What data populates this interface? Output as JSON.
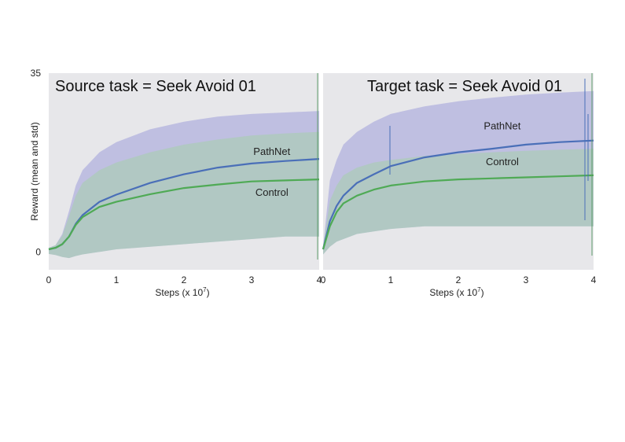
{
  "chart_data": [
    {
      "type": "line",
      "title": "Source task = Seek Avoid 01",
      "xlabel": "Steps (x 10",
      "xlabel_exponent": "7",
      "ylabel": "Reward (mean and std)",
      "xlim": [
        0,
        4
      ],
      "ylim": [
        -3.5,
        35
      ],
      "x_ticks": [
        "0",
        "1",
        "2",
        "3",
        "4"
      ],
      "y_ticks": [
        "35",
        "0"
      ],
      "grid": false,
      "x": [
        0,
        0.1,
        0.2,
        0.3,
        0.4,
        0.5,
        0.75,
        1.0,
        1.5,
        2.0,
        2.5,
        3.0,
        3.5,
        4.0
      ],
      "series": [
        {
          "name": "PathNet",
          "color": "#4a6fb8",
          "mean": [
            0.5,
            0.8,
            1.5,
            3.0,
            5.5,
            7.2,
            9.8,
            11.2,
            13.5,
            15.2,
            16.5,
            17.3,
            17.8,
            18.2
          ],
          "upper": [
            0.8,
            1.3,
            3.5,
            8.0,
            13.0,
            16.0,
            19.5,
            21.5,
            24.0,
            25.5,
            26.5,
            27.0,
            27.3,
            27.6
          ],
          "lower": [
            -0.4,
            -0.6,
            -1.0,
            -1.2,
            -0.8,
            -0.5,
            0.0,
            0.5,
            1.0,
            1.5,
            2.0,
            2.5,
            3.0,
            3.0
          ],
          "label_pos": [
            3.3,
            19.0
          ]
        },
        {
          "name": "Control",
          "color": "#4faa55",
          "mean": [
            0.5,
            0.8,
            1.5,
            3.0,
            5.3,
            6.8,
            8.8,
            9.8,
            11.3,
            12.5,
            13.2,
            13.8,
            14.0,
            14.2
          ],
          "upper": [
            0.8,
            1.3,
            3.2,
            7.0,
            11.0,
            13.5,
            16.0,
            17.5,
            19.5,
            21.0,
            22.0,
            22.8,
            23.2,
            23.5
          ],
          "lower": [
            -0.4,
            -0.6,
            -1.0,
            -1.2,
            -0.8,
            -0.5,
            0.0,
            0.5,
            1.0,
            1.5,
            2.0,
            2.5,
            3.0,
            3.0
          ],
          "label_pos": [
            3.3,
            11.0
          ]
        }
      ]
    },
    {
      "type": "line",
      "title": "Target task = Seek Avoid 01",
      "xlabel": "Steps (x 10",
      "xlabel_exponent": "7",
      "ylabel": "",
      "xlim": [
        0,
        4
      ],
      "ylim": [
        -3.5,
        35
      ],
      "x_ticks": [
        "0",
        "1",
        "2",
        "3",
        "4"
      ],
      "y_ticks": [],
      "grid": false,
      "x": [
        0,
        0.1,
        0.2,
        0.3,
        0.5,
        0.75,
        1.0,
        1.5,
        2.0,
        2.5,
        3.0,
        3.5,
        4.0
      ],
      "series": [
        {
          "name": "PathNet",
          "color": "#4a6fb8",
          "mean": [
            0.5,
            6.0,
            9.0,
            11.0,
            13.5,
            15.2,
            16.8,
            18.5,
            19.5,
            20.2,
            21.0,
            21.5,
            21.8
          ],
          "upper": [
            1.0,
            14.0,
            18.0,
            21.0,
            23.5,
            25.5,
            27.0,
            28.5,
            29.5,
            30.2,
            30.8,
            31.2,
            31.5
          ],
          "lower": [
            -0.5,
            1.0,
            2.0,
            2.5,
            3.5,
            4.0,
            4.5,
            5.0,
            5.0,
            5.0,
            5.0,
            5.0,
            5.0
          ],
          "label_pos": [
            2.65,
            24.0
          ]
        },
        {
          "name": "Control",
          "color": "#4faa55",
          "mean": [
            0.5,
            5.0,
            7.8,
            9.5,
            11.0,
            12.2,
            13.0,
            13.8,
            14.2,
            14.4,
            14.6,
            14.8,
            15.0
          ],
          "upper": [
            1.0,
            10.0,
            13.0,
            15.0,
            16.5,
            17.5,
            18.0,
            18.8,
            19.2,
            19.5,
            19.8,
            20.0,
            20.2
          ],
          "lower": [
            -0.5,
            1.0,
            2.0,
            2.5,
            3.5,
            4.0,
            4.5,
            5.0,
            5.0,
            5.0,
            5.0,
            5.0,
            5.0
          ],
          "label_pos": [
            2.65,
            17.0
          ]
        }
      ]
    }
  ]
}
